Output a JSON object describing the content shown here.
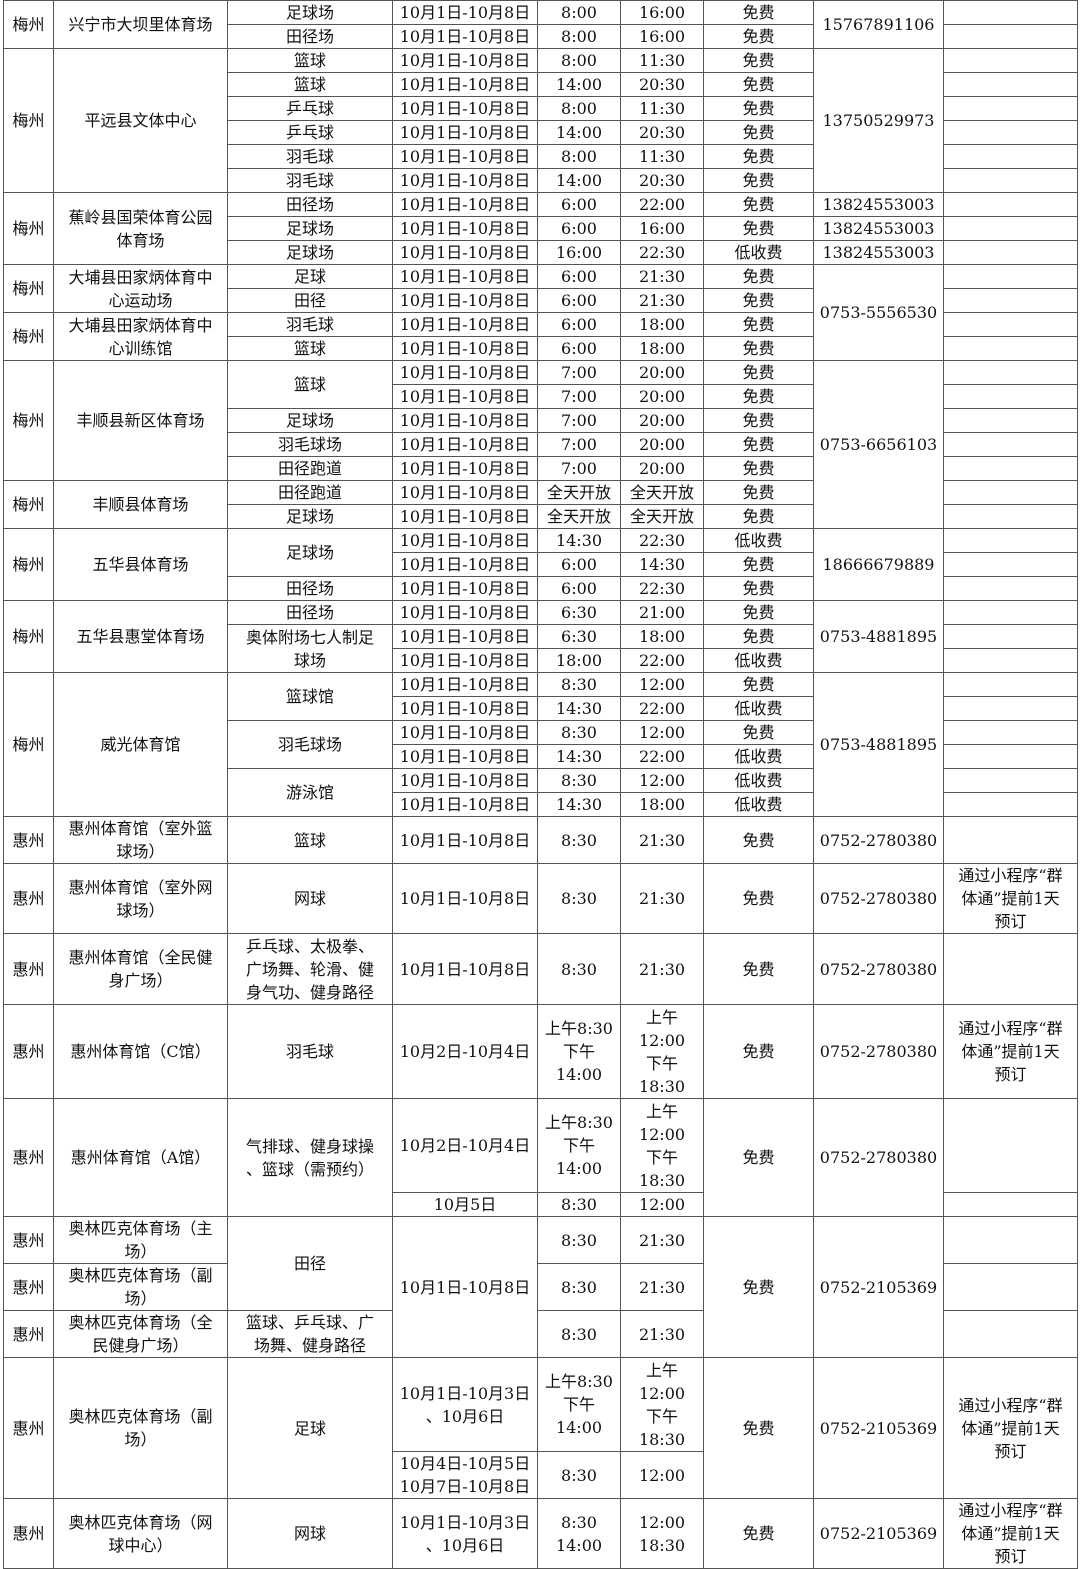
{
  "table": {
    "rows": [
      [
        "梅州",
        "兴宁市大坝里体育场",
        "足球场",
        "10月1日-10月8日",
        "8:00",
        "16:00",
        "免费",
        "15767891106",
        ""
      ],
      [
        "田径场",
        "10月1日-10月8日",
        "8:00",
        "16:00",
        "免费",
        ""
      ],
      [
        "梅州",
        "平远县文体中心",
        "篮球",
        "10月1日-10月8日",
        "8:00",
        "11:30",
        "免费",
        "13750529973",
        ""
      ],
      [
        "篮球",
        "10月1日-10月8日",
        "14:00",
        "20:30",
        "免费",
        ""
      ],
      [
        "乒乓球",
        "10月1日-10月8日",
        "8:00",
        "11:30",
        "免费",
        ""
      ],
      [
        "乒乓球",
        "10月1日-10月8日",
        "14:00",
        "20:30",
        "免费",
        ""
      ],
      [
        "羽毛球",
        "10月1日-10月8日",
        "8:00",
        "11:30",
        "免费",
        ""
      ],
      [
        "羽毛球",
        "10月1日-10月8日",
        "14:00",
        "20:30",
        "免费",
        ""
      ],
      [
        "梅州",
        "蕉岭县国荣体育公园\n体育场",
        "田径场",
        "10月1日-10月8日",
        "6:00",
        "22:00",
        "免费",
        "13824553003",
        ""
      ],
      [
        "足球场",
        "10月1日-10月8日",
        "6:00",
        "16:00",
        "免费",
        "13824553003",
        ""
      ],
      [
        "足球场",
        "10月1日-10月8日",
        "16:00",
        "22:30",
        "低收费",
        "13824553003",
        ""
      ],
      [
        "梅州",
        "大埔县田家炳体育中\n心运动场",
        "足球",
        "10月1日-10月8日",
        "6:00",
        "21:30",
        "免费",
        "0753-5556530",
        ""
      ],
      [
        "田径",
        "10月1日-10月8日",
        "6:00",
        "21:30",
        "免费",
        ""
      ],
      [
        "梅州",
        "大埔县田家炳体育中\n心训练馆",
        "羽毛球",
        "10月1日-10月8日",
        "6:00",
        "18:00",
        "免费",
        ""
      ],
      [
        "篮球",
        "10月1日-10月8日",
        "6:00",
        "18:00",
        "免费",
        ""
      ],
      [
        "梅州",
        "丰顺县新区体育场",
        "篮球",
        "10月1日-10月8日",
        "7:00",
        "20:00",
        "免费",
        "0753-6656103",
        ""
      ],
      [
        "10月1日-10月8日",
        "7:00",
        "20:00",
        "免费",
        ""
      ],
      [
        "足球场",
        "10月1日-10月8日",
        "7:00",
        "20:00",
        "免费",
        ""
      ],
      [
        "羽毛球场",
        "10月1日-10月8日",
        "7:00",
        "20:00",
        "免费",
        ""
      ],
      [
        "田径跑道",
        "10月1日-10月8日",
        "7:00",
        "20:00",
        "免费",
        ""
      ],
      [
        "梅州",
        "丰顺县体育场",
        "田径跑道",
        "10月1日-10月8日",
        "全天开放",
        "全天开放",
        "免费",
        ""
      ],
      [
        "足球场",
        "10月1日-10月8日",
        "全天开放",
        "全天开放",
        "免费",
        ""
      ],
      [
        "梅州",
        "五华县体育场",
        "足球场",
        "10月1日-10月8日",
        "14:30",
        "22:30",
        "低收费",
        "18666679889",
        ""
      ],
      [
        "10月1日-10月8日",
        "6:00",
        "14:30",
        "免费",
        ""
      ],
      [
        "田径场",
        "10月1日-10月8日",
        "6:00",
        "22:30",
        "免费",
        ""
      ],
      [
        "梅州",
        "五华县惠堂体育场",
        "田径场",
        "10月1日-10月8日",
        "6:30",
        "21:00",
        "免费",
        "0753-4881895",
        ""
      ],
      [
        "奥体附场七人制足\n球场",
        "10月1日-10月8日",
        "6:30",
        "18:00",
        "免费",
        ""
      ],
      [
        "10月1日-10月8日",
        "18:00",
        "22:00",
        "低收费",
        ""
      ],
      [
        "梅州",
        "威光体育馆",
        "篮球馆",
        "10月1日-10月8日",
        "8:30",
        "12:00",
        "免费",
        "0753-4881895",
        ""
      ],
      [
        "10月1日-10月8日",
        "14:30",
        "22:00",
        "低收费",
        ""
      ],
      [
        "羽毛球场",
        "10月1日-10月8日",
        "8:30",
        "12:00",
        "免费",
        ""
      ],
      [
        "10月1日-10月8日",
        "14:30",
        "22:00",
        "低收费",
        ""
      ],
      [
        "游泳馆",
        "10月1日-10月8日",
        "8:30",
        "12:00",
        "低收费",
        ""
      ],
      [
        "10月1日-10月8日",
        "14:30",
        "18:00",
        "低收费",
        ""
      ],
      [
        "惠州",
        "惠州体育馆（室外篮\n球场）",
        "篮球",
        "10月1日-10月8日",
        "8:30",
        "21:30",
        "免费",
        "0752-2780380",
        ""
      ],
      [
        "惠州",
        "惠州体育馆（室外网\n球场）",
        "网球",
        "10月1日-10月8日",
        "8:30",
        "21:30",
        "免费",
        "0752-2780380",
        "通过小程序“群\n体通”提前1天\n预订"
      ],
      [
        "惠州",
        "惠州体育馆（全民健\n身广场）",
        "乒乓球、太极拳、\n广场舞、轮滑、健\n身气功、健身路径",
        "10月1日-10月8日",
        "8:30",
        "21:30",
        "免费",
        "0752-2780380",
        ""
      ],
      [
        "惠州",
        "惠州体育馆（C馆）",
        "羽毛球",
        "10月2日-10月4日",
        "上午8:30\n下午\n14:00",
        "上午\n12:00\n下午\n18:30",
        "免费",
        "0752-2780380",
        "通过小程序“群\n体通”提前1天\n预订"
      ],
      [
        "惠州",
        "惠州体育馆（A馆）",
        "气排球、健身球操\n、篮球（需预约）",
        "10月2日-10月4日",
        "上午8:30\n下午\n14:00",
        "上午\n12:00\n下午\n18:30",
        "免费",
        "0752-2780380",
        ""
      ],
      [
        "10月5日",
        "8:30",
        "12:00",
        ""
      ],
      [
        "惠州",
        "奥林匹克体育场（主\n场）",
        "田径",
        "10月1日-10月8日",
        "8:30",
        "21:30",
        "免费",
        "0752-2105369",
        ""
      ],
      [
        "惠州",
        "奥林匹克体育场（副\n场）",
        "8:30",
        "21:30",
        ""
      ],
      [
        "惠州",
        "奥林匹克体育场（全\n民健身广场）",
        "篮球、乒乓球、广\n场舞、健身路径",
        "8:30",
        "21:30",
        ""
      ],
      [
        "惠州",
        "奥林匹克体育场（副\n场）",
        "足球",
        "10月1日-10月3日\n、10月6日",
        "上午8:30\n下午\n14:00",
        "上午\n12:00\n下午\n18:30",
        "免费",
        "0752-2105369",
        "通过小程序“群\n体通”提前1天\n预订"
      ],
      [
        "10月4日-10月5日\n10月7日-10月8日",
        "8:30",
        "12:00"
      ],
      [
        "惠州",
        "奥林匹克体育场（网\n球中心）",
        "网球",
        "10月1日-10月3日\n、10月6日",
        "8:30\n14:00",
        "12:00\n18:30",
        "免费",
        "0752-2105369",
        "通过小程序“群\n体通”提前1天\n预订"
      ]
    ]
  }
}
